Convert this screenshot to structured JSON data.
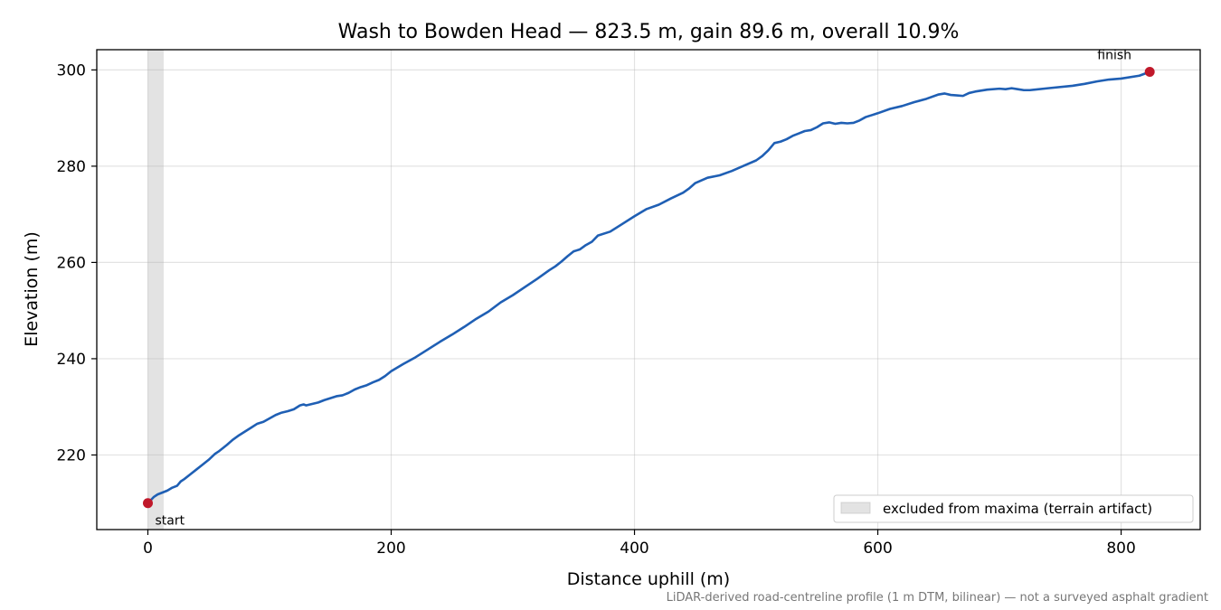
{
  "chart_data": {
    "type": "line",
    "title": "Wash to Bowden Head — 823.5 m, gain 89.6 m, overall 10.9%",
    "xlabel": "Distance uphill (m)",
    "ylabel": "Elevation (m)",
    "xlim": [
      -42,
      865
    ],
    "ylim": [
      204.5,
      304.2
    ],
    "x_ticks": [
      0,
      200,
      400,
      600,
      800
    ],
    "y_ticks": [
      220,
      240,
      260,
      280,
      300
    ],
    "grid": true,
    "legend_position": "lower-right",
    "legend_label": "excluded from maxima (terrain artifact)",
    "footnote": "LiDAR-derived road-centreline profile (1 m DTM, bilinear) — not a surveyed asphalt gradient",
    "line_color": "#1f5fb4",
    "marker_color": "#c0182a",
    "shade_color": "#bdbdbd",
    "excluded_range": [
      0,
      13
    ],
    "series": [
      {
        "x": [
          0,
          2,
          5,
          8,
          12,
          16,
          20,
          24,
          27,
          30,
          35,
          40,
          45,
          50,
          55,
          58,
          62,
          65,
          70,
          75,
          80,
          85,
          90,
          95,
          100,
          105,
          110,
          115,
          120,
          125,
          128,
          130,
          135,
          140,
          145,
          150,
          155,
          160,
          165,
          170,
          175,
          180,
          185,
          190,
          195,
          200,
          210,
          220,
          230,
          240,
          250,
          260,
          270,
          280,
          290,
          300,
          310,
          320,
          330,
          335,
          340,
          345,
          350,
          355,
          360,
          365,
          370,
          380,
          390,
          400,
          410,
          420,
          430,
          440,
          445,
          450,
          460,
          470,
          480,
          490,
          500,
          505,
          510,
          515,
          520,
          525,
          530,
          535,
          540,
          545,
          550,
          555,
          560,
          565,
          570,
          575,
          580,
          585,
          590,
          595,
          600,
          610,
          620,
          630,
          640,
          650,
          655,
          660,
          665,
          670,
          675,
          680,
          690,
          700,
          705,
          710,
          715,
          720,
          725,
          740,
          760,
          770,
          780,
          790,
          800,
          815,
          823.5
        ],
        "y": [
          210.0,
          210.5,
          211.3,
          211.8,
          212.2,
          212.6,
          213.2,
          213.6,
          214.5,
          215.0,
          216.0,
          217.0,
          218.0,
          219.0,
          220.2,
          220.7,
          221.5,
          222.1,
          223.2,
          224.1,
          224.9,
          225.7,
          226.5,
          226.9,
          227.6,
          228.3,
          228.8,
          229.1,
          229.5,
          230.3,
          230.5,
          230.3,
          230.6,
          230.9,
          231.4,
          231.8,
          232.2,
          232.4,
          232.9,
          233.6,
          234.1,
          234.5,
          235.1,
          235.6,
          236.4,
          237.4,
          238.9,
          240.3,
          241.9,
          243.5,
          245.0,
          246.6,
          248.3,
          249.8,
          251.7,
          253.2,
          254.9,
          256.6,
          258.4,
          259.2,
          260.2,
          261.3,
          262.3,
          262.7,
          263.6,
          264.3,
          265.6,
          266.4,
          268.0,
          269.6,
          271.1,
          272.0,
          273.3,
          274.5,
          275.4,
          276.5,
          277.6,
          278.1,
          279.0,
          280.1,
          281.2,
          282.1,
          283.3,
          284.8,
          285.1,
          285.6,
          286.3,
          286.8,
          287.3,
          287.5,
          288.1,
          288.9,
          289.1,
          288.8,
          289.0,
          288.9,
          289.0,
          289.5,
          290.2,
          290.6,
          291.0,
          291.9,
          292.5,
          293.3,
          294.0,
          294.9,
          295.1,
          294.8,
          294.7,
          294.6,
          295.2,
          295.5,
          295.9,
          296.1,
          296.0,
          296.2,
          296.0,
          295.8,
          295.8,
          296.2,
          296.7,
          297.1,
          297.6,
          298.0,
          298.2,
          298.8,
          299.6
        ]
      }
    ],
    "annotations": [
      {
        "text": "start",
        "x": 0,
        "y": 210.0
      },
      {
        "text": "finish",
        "x": 823.5,
        "y": 299.6
      }
    ]
  }
}
